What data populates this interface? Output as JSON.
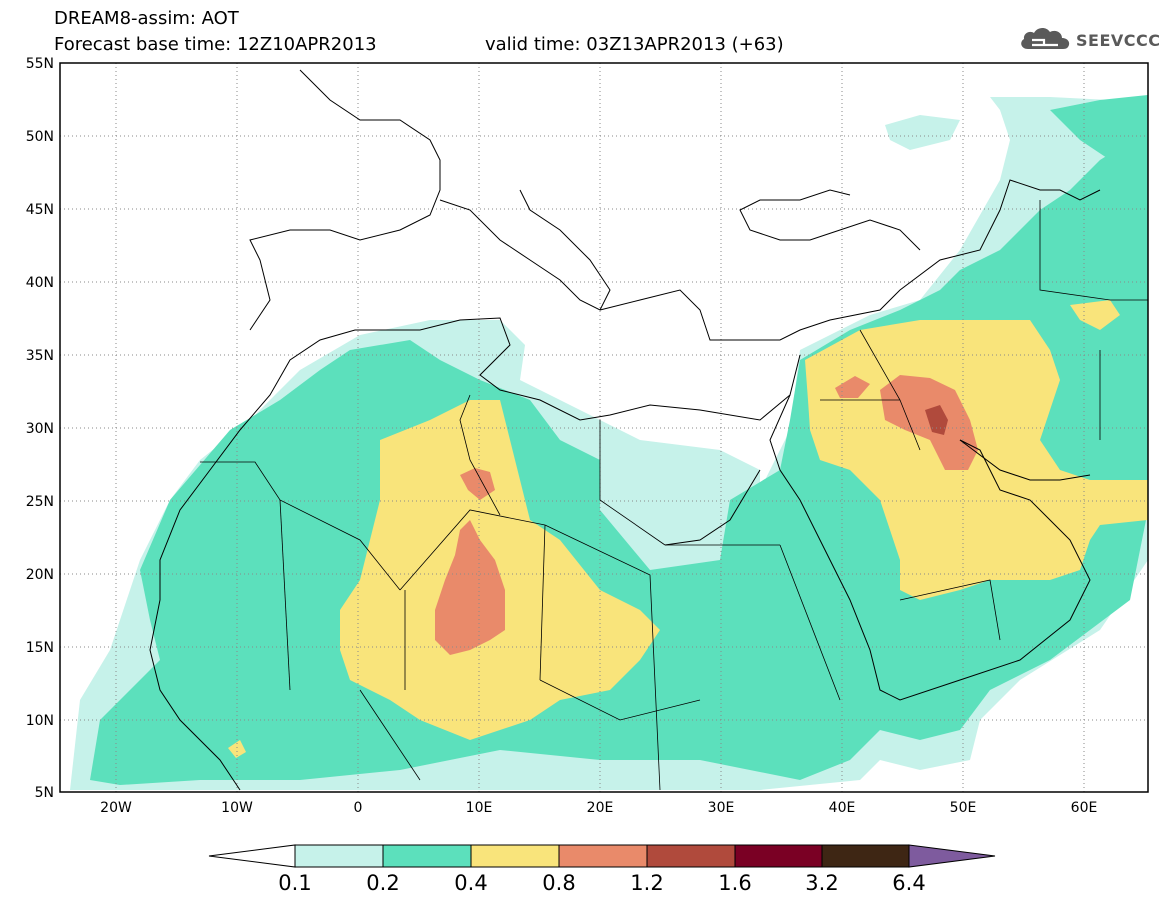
{
  "header": {
    "title_line1": "DREAM8-assim: AOT",
    "title_line2": "Forecast base time: 12Z10APR2013",
    "valid_time": "valid time: 03Z13APR2013 (+63)",
    "logo_text": "SEEVCCC",
    "logo_icon": "cloud-icon"
  },
  "map": {
    "lon_range": [
      -25,
      65
    ],
    "lat_range": [
      5,
      55
    ],
    "lat_labels": [
      "55N",
      "50N",
      "45N",
      "40N",
      "35N",
      "30N",
      "25N",
      "20N",
      "15N",
      "10N",
      "5N"
    ],
    "lon_labels": [
      "20W",
      "10W",
      "0",
      "10E",
      "20E",
      "30E",
      "40E",
      "50E",
      "60E"
    ],
    "grid": "dotted"
  },
  "legend": {
    "levels": [
      "0.1",
      "0.2",
      "0.4",
      "0.8",
      "1.2",
      "1.6",
      "3.2",
      "6.4"
    ],
    "colors": [
      "#ffffff",
      "#c6f2ea",
      "#5ce0bc",
      "#f9e47b",
      "#e98a6a",
      "#b04a3c",
      "#7a0024",
      "#3e2614",
      "#7e5b9e"
    ]
  }
}
